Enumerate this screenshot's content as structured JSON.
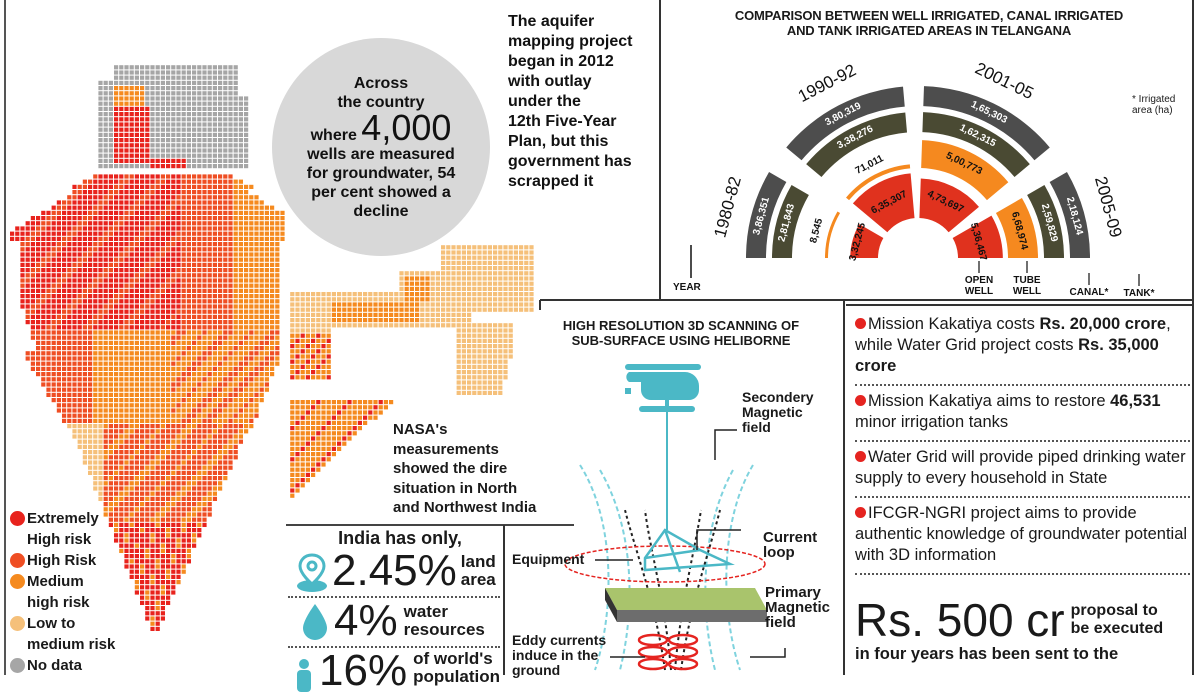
{
  "bubble": {
    "line1": "Across",
    "line2": "the country",
    "where": "where",
    "count": "4,000",
    "line4": "wells are measured",
    "line5a": "for groundwater,",
    "line5b": "54",
    "line6a": "per cent",
    "line6b": "showed a",
    "line7": "decline"
  },
  "aquifer_note": [
    "The aquifer",
    "mapping project",
    "began in 2012",
    "with outlay",
    "under the",
    "12th Five-Year",
    "Plan, but this",
    "government has",
    "scrapped it"
  ],
  "map_legend": [
    {
      "label": "Extremely",
      "label2": "High risk",
      "color": "#e8231d"
    },
    {
      "label": "High Risk",
      "label2": "",
      "color": "#ef4e23"
    },
    {
      "label": "Medium",
      "label2": "high risk",
      "color": "#f58a1f"
    },
    {
      "label": "Low to",
      "label2": "medium risk",
      "color": "#f5c07a"
    },
    {
      "label": "No data",
      "label2": "",
      "color": "#a6a6a6"
    }
  ],
  "nasa_note": [
    "NASA's",
    "measurements",
    "showed the dire",
    "situation in North",
    "and Northwest India"
  ],
  "stats": {
    "intro": "India has only,",
    "items": [
      {
        "value": "2.45%",
        "label1": "land",
        "label2": "area",
        "icon": "location-pin-icon"
      },
      {
        "value": "4%",
        "label1": "water",
        "label2": "resources",
        "icon": "water-drop-icon"
      },
      {
        "value": "16%",
        "label1": "of world's",
        "label2": "population",
        "icon": "people-icon"
      }
    ]
  },
  "scan": {
    "title1": "HIGH RESOLUTION 3D SCANNING OF",
    "title2": "SUB-SURFACE USING HELIBORNE",
    "labels": {
      "secondary": [
        "Secondery",
        "Magnetic",
        "field"
      ],
      "current": [
        "Current",
        "loop"
      ],
      "equipment": "Equipment",
      "primary": [
        "Primary",
        "Magnetic",
        "field"
      ],
      "eddy": [
        "Eddy currents",
        "induce in the",
        "ground"
      ]
    },
    "colors": {
      "teal": "#4bb8c6",
      "red": "#e52420",
      "slab_top": "#a9c46c",
      "slab_side": "#6d6d6d"
    }
  },
  "facts": [
    {
      "parts": [
        {
          "t": "Mission Kakatiya costs ",
          "b": false
        },
        {
          "t": "Rs. 20,000 crore",
          "b": true
        },
        {
          "t": ", while Water Grid project costs ",
          "b": false
        },
        {
          "t": "Rs. 35,000 crore",
          "b": true
        }
      ]
    },
    {
      "parts": [
        {
          "t": "Mission Kakatiya aims to restore ",
          "b": false
        },
        {
          "t": "46,531",
          "b": true
        },
        {
          "t": " minor irrigation tanks",
          "b": false
        }
      ]
    },
    {
      "parts": [
        {
          "t": "Water Grid will provide piped drinking water supply to every household in State",
          "b": false
        }
      ]
    },
    {
      "parts": [
        {
          "t": "IFCGR-NGRI project aims to provide authentic knowledge of groundwater potential with 3D information",
          "b": false
        }
      ]
    }
  ],
  "proposal": {
    "big": "Rs. 500 cr",
    "side": [
      "proposal to",
      "be executed"
    ],
    "rest": "in four years has been sent to the"
  },
  "chart_data": {
    "type": "radial-bar",
    "title": "COMPARISON BETWEEN WELL IRRIGATED, CANAL IRRIGATED AND TANK IRRIGATED AREAS IN TELANGANA",
    "note": "* Irrigated area (ha)",
    "axis_label": "YEAR",
    "categories": [
      "1980-82",
      "1990-92",
      "2001-05",
      "2005-09"
    ],
    "series": [
      {
        "name": "OPEN WELL",
        "color": "#e0321e",
        "values": [
          332245,
          635307,
          473697,
          536467
        ]
      },
      {
        "name": "TUBE WELL",
        "color": "#f5891f",
        "values": [
          8545,
          71011,
          500773,
          668974
        ]
      },
      {
        "name": "CANAL*",
        "color": "#4a4a33",
        "values": [
          281843,
          338276,
          162315,
          259829
        ]
      },
      {
        "name": "TANK*",
        "color": "#4d4d4d",
        "values": [
          386351,
          380319,
          165303,
          218124
        ]
      }
    ],
    "labels": {
      "1980-82": {
        "open_well": "3,32,245",
        "tube_well": "8,545",
        "canal": "2,81,843",
        "tank": "3,86,351"
      },
      "1990-92": {
        "open_well": "6,35,307",
        "tube_well": "71,011",
        "canal": "3,38,276",
        "tank": "3,80,319"
      },
      "2001-05": {
        "open_well": "4,73,697",
        "tube_well": "5,00,773",
        "canal": "1,62,315",
        "tank": "1,65,303"
      },
      "2005-09": {
        "open_well": "5,36,467",
        "tube_well": "6,68,974",
        "canal": "2,59,829",
        "tank": "2,18,124"
      }
    },
    "legend": [
      "OPEN WELL",
      "TUBE WELL",
      "CANAL*",
      "TANK*"
    ]
  }
}
